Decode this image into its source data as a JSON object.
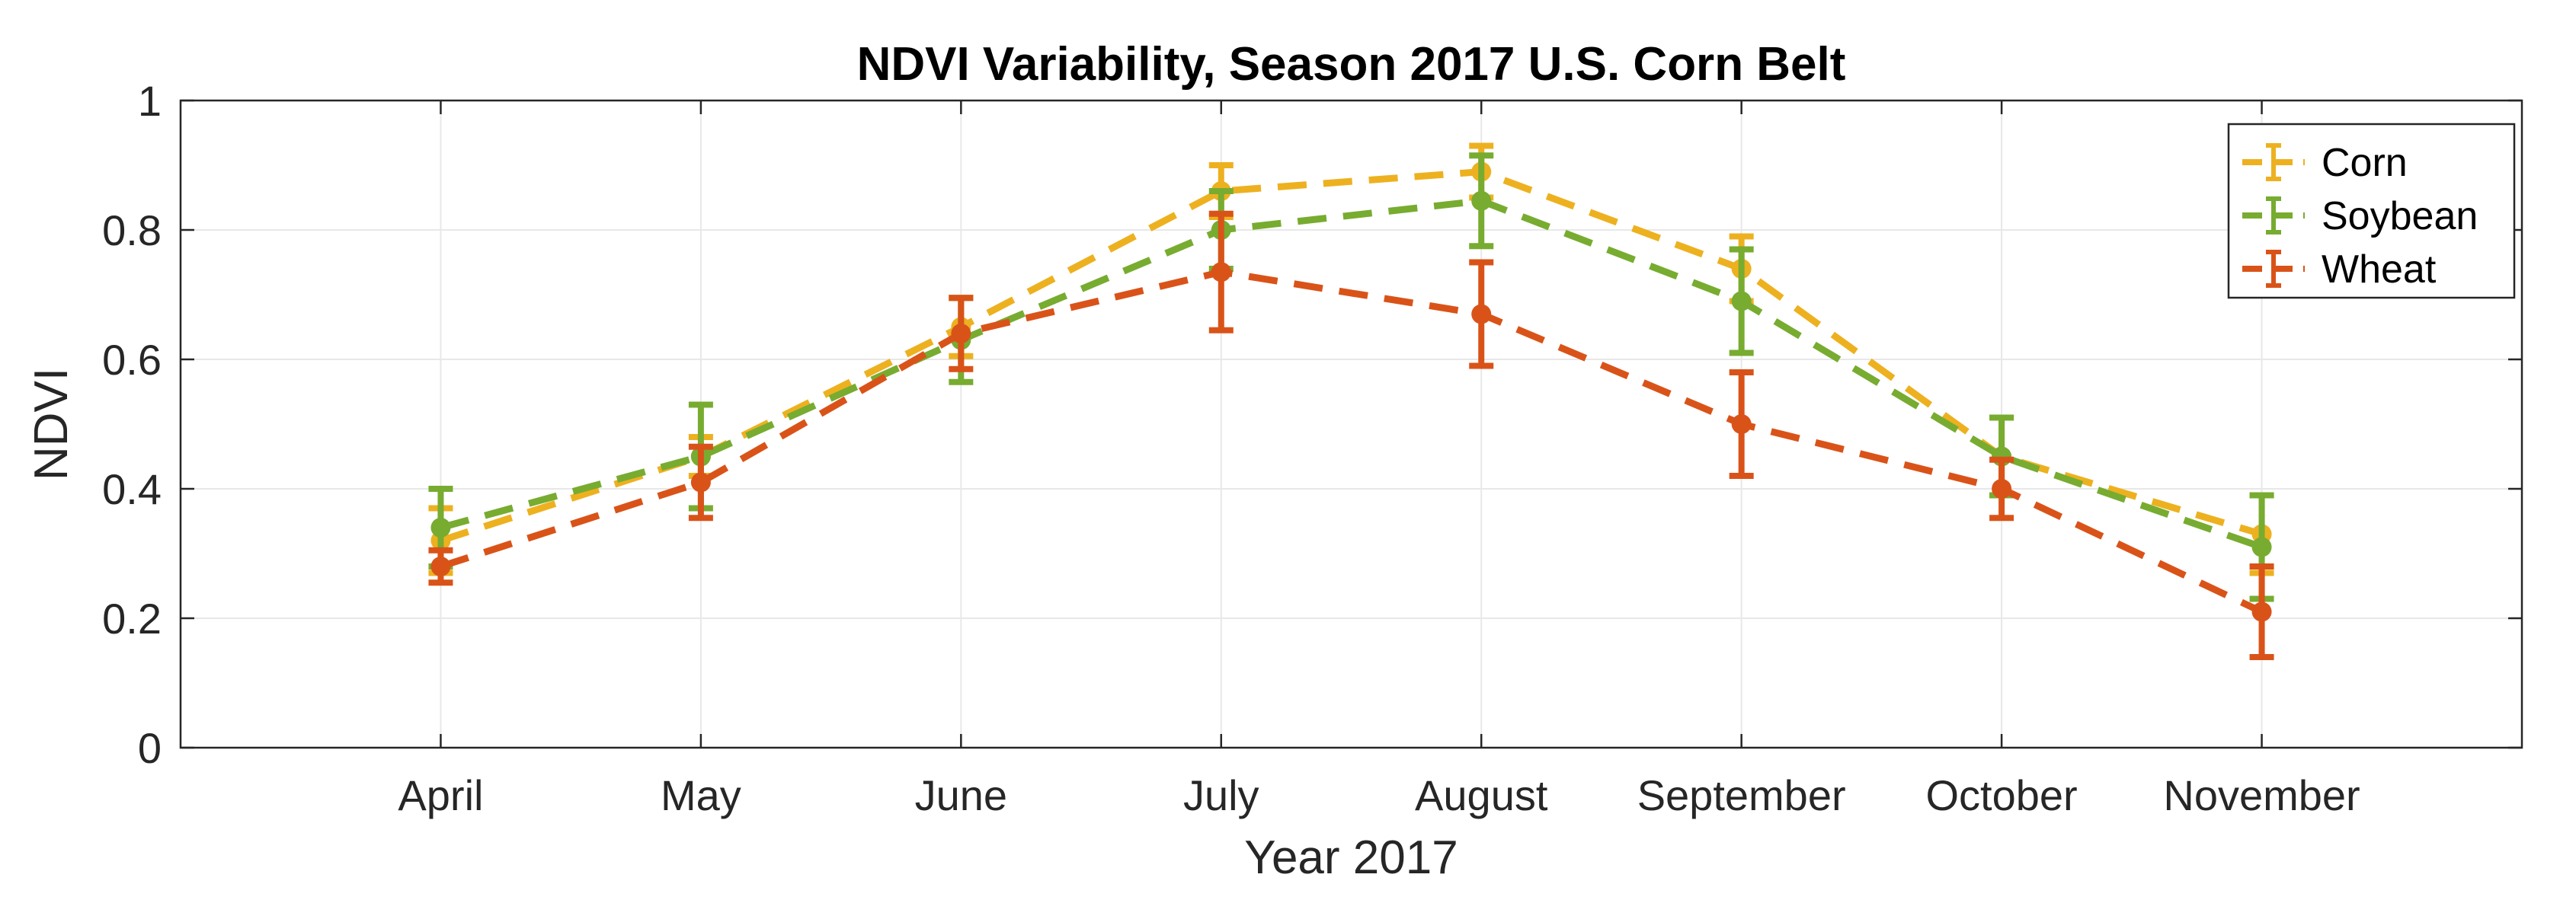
{
  "chart_data": {
    "type": "line",
    "title": "NDVI Variability, Season 2017 U.S. Corn Belt",
    "xlabel": "Year 2017",
    "ylabel": "NDVI",
    "categories": [
      "April",
      "May",
      "June",
      "July",
      "August",
      "September",
      "October",
      "November"
    ],
    "ylim": [
      0,
      1
    ],
    "yticks": [
      0,
      0.2,
      0.4,
      0.6,
      0.8,
      1
    ],
    "ytick_labels": [
      "0",
      "0.2",
      "0.4",
      "0.6",
      "0.8",
      "1"
    ],
    "grid": true,
    "legend_position": "top-right",
    "series": [
      {
        "name": "Corn",
        "color": "#EDB120",
        "values": [
          0.32,
          0.45,
          0.65,
          0.86,
          0.89,
          0.74,
          0.45,
          0.33
        ],
        "error": [
          0.05,
          0.03,
          0.045,
          0.04,
          0.04,
          0.05,
          0.06,
          0.06
        ]
      },
      {
        "name": "Soybean",
        "color": "#77AC30",
        "values": [
          0.34,
          0.45,
          0.63,
          0.8,
          0.845,
          0.69,
          0.45,
          0.31
        ],
        "error": [
          0.06,
          0.08,
          0.065,
          0.06,
          0.07,
          0.08,
          0.06,
          0.08
        ]
      },
      {
        "name": "Wheat",
        "color": "#D95319",
        "values": [
          0.28,
          0.41,
          0.64,
          0.735,
          0.67,
          0.5,
          0.4,
          0.21
        ],
        "error": [
          0.025,
          0.055,
          0.055,
          0.09,
          0.08,
          0.08,
          0.045,
          0.07
        ]
      }
    ]
  }
}
